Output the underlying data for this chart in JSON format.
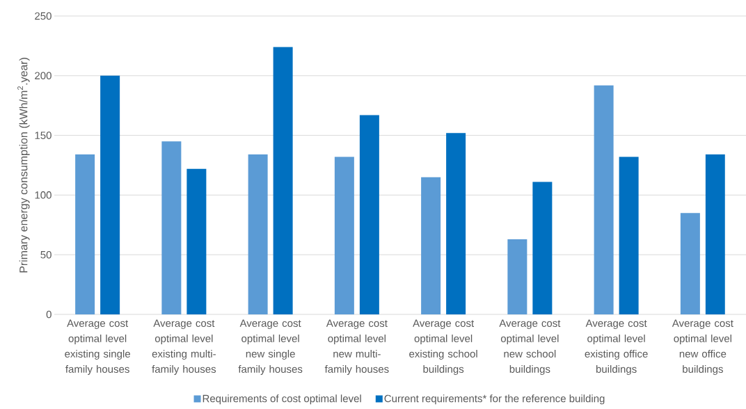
{
  "chart_data": {
    "type": "bar",
    "ylabel": "Primary energy consumption (kWh/m$^{2}$.year)",
    "categories": [
      "Average cost optimal level existing single family houses",
      "Average cost optimal level existing multi-family houses",
      "Average cost optimal level new single family houses",
      "Average cost optimal level new multi-family houses",
      "Average cost optimal level existing school buildings",
      "Average cost optimal level new school buildings",
      "Average cost optimal level existing office buildings",
      "Average cost optimal level new office buildings"
    ],
    "series": [
      {
        "name": "Requirements of cost optimal level",
        "color": "#5b9bd5",
        "values": [
          134,
          145,
          134,
          132,
          115,
          63,
          192,
          85
        ]
      },
      {
        "name": "Current requirements* for the reference building",
        "color": "#0070c0",
        "values": [
          200,
          122,
          224,
          167,
          152,
          111,
          132,
          134
        ]
      }
    ],
    "ylim": [
      0,
      250
    ],
    "yticks": [
      0,
      50,
      100,
      150,
      200,
      250
    ],
    "grid": "y",
    "legend": "bottom"
  }
}
